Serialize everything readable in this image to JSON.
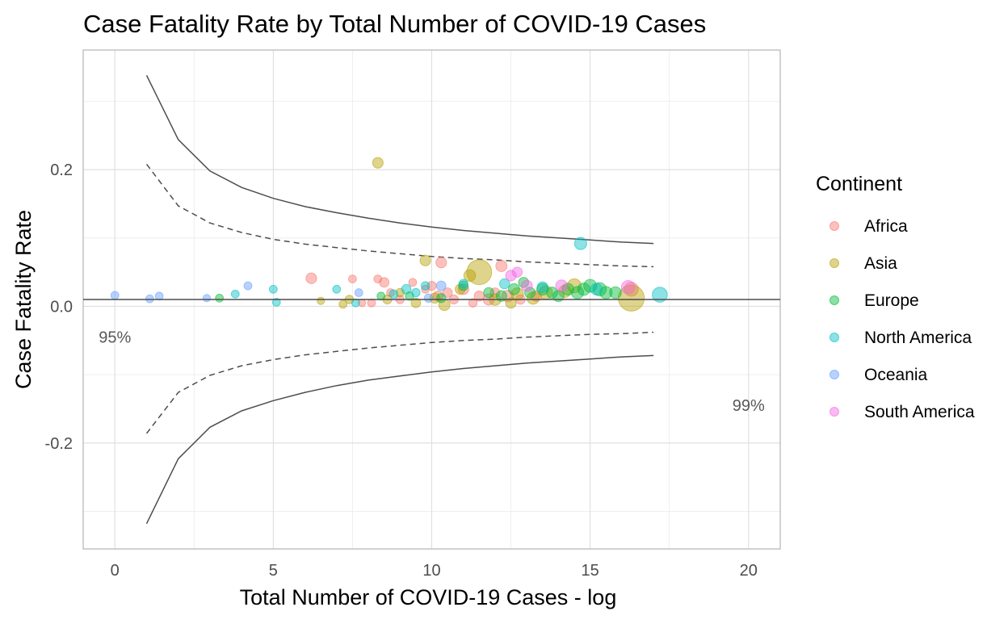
{
  "chart_data": {
    "type": "scatter",
    "title": "Case Fatality Rate by Total Number of COVID-19 Cases",
    "xlabel": "Total Number of COVID-19 Cases - log",
    "ylabel": "Case Fatality Rate",
    "xlim": [
      -1,
      21
    ],
    "ylim": [
      -0.355,
      0.375
    ],
    "x_ticks": [
      0,
      5,
      10,
      15,
      20
    ],
    "x_tick_labels": [
      "0",
      "5",
      "10",
      "15",
      "20"
    ],
    "y_ticks": [
      -0.2,
      0.0,
      0.2
    ],
    "y_tick_labels": [
      "-0.2",
      "0.0",
      "0.2"
    ],
    "grid": true,
    "legend": {
      "title": "Continent",
      "position": "right",
      "entries": [
        {
          "name": "Africa",
          "color": "#F8766D"
        },
        {
          "name": "Asia",
          "color": "#B79F00"
        },
        {
          "name": "Europe",
          "color": "#00BA38"
        },
        {
          "name": "North America",
          "color": "#00BFC4"
        },
        {
          "name": "Oceania",
          "color": "#619CFF"
        },
        {
          "name": "South America",
          "color": "#F564E3"
        }
      ]
    },
    "annotations": [
      {
        "text": "95%",
        "x": 0,
        "y": -0.053
      },
      {
        "text": "99%",
        "x": 20,
        "y": -0.153
      }
    ],
    "reference_line": {
      "y": 0.01
    },
    "funnel": {
      "x": [
        1,
        2,
        3,
        4,
        5,
        6,
        7,
        8,
        9,
        10,
        11,
        12,
        13,
        14,
        15,
        16,
        17
      ],
      "upper_99": [
        0.338,
        0.244,
        0.198,
        0.174,
        0.158,
        0.146,
        0.137,
        0.129,
        0.122,
        0.116,
        0.111,
        0.107,
        0.103,
        0.1,
        0.097,
        0.094,
        0.092
      ],
      "lower_99": [
        -0.318,
        -0.223,
        -0.177,
        -0.153,
        -0.138,
        -0.126,
        -0.116,
        -0.108,
        -0.102,
        -0.096,
        -0.091,
        -0.087,
        -0.083,
        -0.08,
        -0.077,
        -0.074,
        -0.072
      ],
      "upper_95": [
        0.208,
        0.147,
        0.122,
        0.108,
        0.098,
        0.091,
        0.086,
        0.081,
        0.077,
        0.073,
        0.07,
        0.068,
        0.065,
        0.063,
        0.061,
        0.059,
        0.058
      ],
      "lower_95": [
        -0.186,
        -0.126,
        -0.101,
        -0.087,
        -0.078,
        -0.071,
        -0.066,
        -0.061,
        -0.057,
        -0.053,
        -0.05,
        -0.048,
        -0.045,
        -0.043,
        -0.041,
        -0.04,
        -0.038
      ]
    },
    "series": [
      {
        "name": "Africa",
        "color": "#F8766D",
        "points": [
          [
            6.2,
            0.041,
            1
          ],
          [
            7.5,
            0.04,
            0.5
          ],
          [
            7.8,
            0.005,
            0.4
          ],
          [
            8.1,
            0.005,
            0.5
          ],
          [
            8.3,
            0.04,
            0.5
          ],
          [
            8.5,
            0.035,
            0.8
          ],
          [
            8.7,
            0.02,
            0.5
          ],
          [
            9.0,
            0.01,
            0.6
          ],
          [
            9.4,
            0.035,
            0.5
          ],
          [
            9.8,
            0.025,
            0.5
          ],
          [
            10.0,
            0.03,
            0.7
          ],
          [
            10.2,
            0.015,
            0.9
          ],
          [
            10.3,
            0.064,
            1
          ],
          [
            10.5,
            0.02,
            0.8
          ],
          [
            10.7,
            0.01,
            0.7
          ],
          [
            11.0,
            0.025,
            1
          ],
          [
            11.3,
            0.005,
            0.6
          ],
          [
            11.5,
            0.015,
            0.9
          ],
          [
            11.8,
            0.01,
            1.1
          ],
          [
            12.0,
            0.02,
            0.8
          ],
          [
            12.2,
            0.059,
            1.1
          ],
          [
            12.4,
            0.015,
            1.2
          ],
          [
            12.8,
            0.01,
            0.8
          ],
          [
            13.3,
            0.015,
            1
          ],
          [
            16.3,
            0.025,
            1.6
          ]
        ]
      },
      {
        "name": "Asia",
        "color": "#B79F00",
        "points": [
          [
            6.5,
            0.008,
            0.4
          ],
          [
            7.2,
            0.003,
            0.5
          ],
          [
            7.4,
            0.01,
            0.6
          ],
          [
            8.3,
            0.21,
            1
          ],
          [
            8.6,
            0.01,
            0.7
          ],
          [
            9.0,
            0.02,
            0.6
          ],
          [
            9.5,
            0.005,
            0.8
          ],
          [
            9.8,
            0.067,
            1
          ],
          [
            10.1,
            0.012,
            0.9
          ],
          [
            10.4,
            0.002,
            1.1
          ],
          [
            10.9,
            0.025,
            0.9
          ],
          [
            11.2,
            0.045,
            1.2
          ],
          [
            11.5,
            0.05,
            3.6
          ],
          [
            12.0,
            0.01,
            1.2
          ],
          [
            12.5,
            0.005,
            1
          ],
          [
            12.7,
            0.018,
            1.3
          ],
          [
            13.2,
            0.012,
            1.3
          ],
          [
            13.6,
            0.02,
            1.5
          ],
          [
            14.2,
            0.022,
            1.3
          ],
          [
            14.5,
            0.03,
            1.6
          ],
          [
            16.3,
            0.012,
            3.8
          ]
        ]
      },
      {
        "name": "Europe",
        "color": "#00BA38",
        "points": [
          [
            3.3,
            0.012,
            0.5
          ],
          [
            8.4,
            0.015,
            0.5
          ],
          [
            9.3,
            0.015,
            0.6
          ],
          [
            10.3,
            0.012,
            0.7
          ],
          [
            11.0,
            0.03,
            0.8
          ],
          [
            11.8,
            0.02,
            0.9
          ],
          [
            12.2,
            0.015,
            1
          ],
          [
            12.6,
            0.025,
            1.1
          ],
          [
            12.9,
            0.035,
            0.9
          ],
          [
            13.1,
            0.02,
            1
          ],
          [
            13.5,
            0.025,
            1.2
          ],
          [
            13.8,
            0.02,
            1.1
          ],
          [
            14.0,
            0.015,
            1.1
          ],
          [
            14.3,
            0.025,
            1.2
          ],
          [
            14.6,
            0.02,
            1.3
          ],
          [
            14.8,
            0.025,
            1.3
          ],
          [
            15.0,
            0.03,
            1.4
          ],
          [
            15.3,
            0.025,
            1.5
          ],
          [
            15.5,
            0.02,
            1.3
          ],
          [
            15.8,
            0.02,
            1.2
          ]
        ]
      },
      {
        "name": "North America",
        "color": "#00BFC4",
        "points": [
          [
            3.8,
            0.018,
            0.5
          ],
          [
            5.0,
            0.025,
            0.5
          ],
          [
            5.1,
            0.006,
            0.5
          ],
          [
            7.0,
            0.025,
            0.5
          ],
          [
            7.6,
            0.005,
            0.5
          ],
          [
            8.8,
            0.018,
            0.6
          ],
          [
            9.2,
            0.025,
            0.8
          ],
          [
            9.5,
            0.02,
            0.6
          ],
          [
            9.8,
            0.03,
            0.6
          ],
          [
            11.0,
            0.033,
            0.7
          ],
          [
            12.3,
            0.033,
            0.9
          ],
          [
            13.5,
            0.028,
            1
          ],
          [
            14.7,
            0.092,
            1.3
          ],
          [
            15.2,
            0.025,
            1.2
          ],
          [
            17.2,
            0.017,
            1.8
          ]
        ]
      },
      {
        "name": "Oceania",
        "color": "#619CFF",
        "points": [
          [
            0.0,
            0.016,
            0.5
          ],
          [
            1.1,
            0.011,
            0.5
          ],
          [
            1.4,
            0.015,
            0.5
          ],
          [
            2.9,
            0.012,
            0.4
          ],
          [
            4.2,
            0.03,
            0.5
          ],
          [
            7.7,
            0.02,
            0.5
          ],
          [
            9.9,
            0.012,
            0.6
          ],
          [
            10.3,
            0.03,
            0.8
          ]
        ]
      },
      {
        "name": "South America",
        "color": "#F564E3",
        "points": [
          [
            12.5,
            0.045,
            1
          ],
          [
            12.7,
            0.05,
            0.9
          ],
          [
            13.0,
            0.03,
            1.1
          ],
          [
            14.1,
            0.03,
            1.2
          ],
          [
            16.2,
            0.028,
            1.5
          ]
        ]
      }
    ]
  }
}
